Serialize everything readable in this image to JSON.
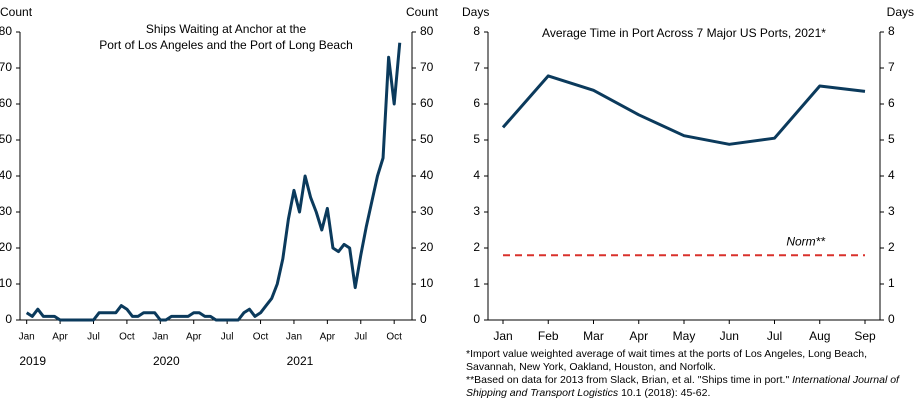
{
  "chart_data": [
    {
      "type": "line",
      "title_lines": [
        "Ships Waiting at Anchor at the",
        "Port of Los Angeles and the Port of Long Beach"
      ],
      "ylabel": "Count",
      "y2label": "Count",
      "x": [
        0,
        0.5,
        1,
        1.5,
        2,
        2.5,
        3,
        3.5,
        4,
        4.5,
        5,
        5.5,
        6,
        6.5,
        7,
        7.5,
        8,
        8.5,
        9,
        9.5,
        10,
        10.5,
        11,
        11.5,
        12,
        12.5,
        13,
        13.5,
        14,
        14.5,
        15,
        15.5,
        16,
        16.5,
        17,
        17.5,
        18,
        18.5,
        19,
        19.5,
        20,
        20.5,
        21,
        21.5,
        22,
        22.5,
        23,
        23.5,
        24,
        24.5,
        25,
        25.5,
        26,
        26.5,
        27,
        27.5,
        28,
        28.5,
        29,
        29.5,
        30,
        30.5,
        31,
        31.5,
        32,
        32.5,
        33,
        33.5
      ],
      "values": [
        2,
        1,
        3,
        1,
        1,
        1,
        0,
        0,
        0,
        0,
        0,
        0,
        0,
        2,
        2,
        2,
        2,
        4,
        3,
        1,
        1,
        2,
        2,
        2,
        0,
        0,
        1,
        1,
        1,
        1,
        2,
        2,
        1,
        1,
        0,
        0,
        0,
        0,
        0,
        2,
        3,
        1,
        2,
        4,
        6,
        10,
        17,
        28,
        36,
        30,
        40,
        34,
        30,
        25,
        31,
        20,
        19,
        21,
        20,
        9,
        18,
        26,
        33,
        40,
        45,
        73,
        60,
        77
      ],
      "color": "#0b3a5c",
      "xlim": [
        -0.6,
        34.6
      ],
      "xticks": [
        {
          "value": 0,
          "label": "Jan"
        },
        {
          "value": 3,
          "label": "Apr"
        },
        {
          "value": 6,
          "label": "Jul"
        },
        {
          "value": 9,
          "label": "Oct"
        },
        {
          "value": 12,
          "label": "Jan"
        },
        {
          "value": 15,
          "label": "Apr"
        },
        {
          "value": 18,
          "label": "Jul"
        },
        {
          "value": 21,
          "label": "Oct"
        },
        {
          "value": 24,
          "label": "Jan"
        },
        {
          "value": 27,
          "label": "Apr"
        },
        {
          "value": 30,
          "label": "Jul"
        },
        {
          "value": 33,
          "label": "Oct"
        }
      ],
      "year_labels": [
        {
          "value": 0,
          "label": "2019"
        },
        {
          "value": 12,
          "label": "2020"
        },
        {
          "value": 24,
          "label": "2021"
        }
      ],
      "ylim": [
        0,
        80
      ],
      "yticks": [
        0,
        10,
        20,
        30,
        40,
        50,
        60,
        70,
        80
      ]
    },
    {
      "type": "line",
      "title": "Average  Time  in Port Across 7 Major US Ports, 2021*",
      "ylabel": "Days",
      "y2label": "Days",
      "categories": [
        "Jan",
        "Feb",
        "Mar",
        "Apr",
        "May",
        "Jun",
        "Jul",
        "Aug",
        "Sep"
      ],
      "values": [
        5.35,
        6.78,
        6.38,
        5.7,
        5.12,
        4.88,
        5.05,
        6.5,
        6.35
      ],
      "color": "#0b3a5c",
      "norm": {
        "label": "Norm**",
        "value": 1.8,
        "color": "#d9312b"
      },
      "ylim": [
        0,
        8
      ],
      "yticks": [
        0,
        1,
        2,
        3,
        4,
        5,
        6,
        7,
        8
      ],
      "notes": [
        "*Import value weighted average of wait times at the ports of Los Angeles, Long Beach, Savannah, New York, Oakland, Houston, and Norfolk.",
        [
          "**Based on data for 2013 from Slack, Brian, et al. \"Ships time in port.\" ",
          "International Journal of Shipping and Transport Logistics",
          " 10.1 (2018): 45-62."
        ]
      ]
    }
  ]
}
